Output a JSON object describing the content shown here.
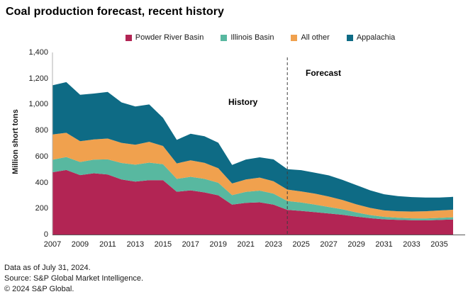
{
  "title": "Coal production forecast, recent history",
  "legend": [
    {
      "label": "Powder River Basin",
      "color": "#b22554"
    },
    {
      "label": "Illinois Basin",
      "color": "#58b8a0"
    },
    {
      "label": "All other",
      "color": "#f0a14e"
    },
    {
      "label": "Appalachia",
      "color": "#0e6b85"
    }
  ],
  "chart_data": {
    "type": "area",
    "stacked": true,
    "title": "Coal production forecast, recent history",
    "ylabel": "Million short tons",
    "xlabel": "",
    "ylim": [
      0,
      1400
    ],
    "grid": false,
    "legend_position": "top",
    "x": [
      2007,
      2008,
      2009,
      2010,
      2011,
      2012,
      2013,
      2014,
      2015,
      2016,
      2017,
      2018,
      2019,
      2020,
      2021,
      2022,
      2023,
      2024,
      2025,
      2026,
      2027,
      2028,
      2029,
      2030,
      2031,
      2032,
      2033,
      2034,
      2035,
      2036
    ],
    "series": [
      {
        "name": "Powder River Basin",
        "color": "#b22554",
        "values": [
          479,
          496,
          457,
          471,
          462,
          423,
          407,
          418,
          418,
          329,
          340,
          324,
          302,
          230,
          244,
          248,
          230,
          190,
          182,
          172,
          162,
          152,
          138,
          126,
          117,
          113,
          110,
          109,
          112,
          116
        ]
      },
      {
        "name": "Illinois Basin",
        "color": "#58b8a0",
        "values": [
          96,
          100,
          101,
          105,
          116,
          127,
          130,
          135,
          123,
          99,
          104,
          104,
          96,
          73,
          84,
          90,
          85,
          68,
          65,
          58,
          50,
          42,
          32,
          24,
          19,
          16,
          15,
          15,
          16,
          17
        ]
      },
      {
        "name": "All other",
        "color": "#f0a14e",
        "values": [
          195,
          186,
          160,
          155,
          160,
          155,
          153,
          160,
          140,
          119,
          127,
          124,
          112,
          90,
          95,
          100,
          95,
          88,
          85,
          85,
          80,
          72,
          62,
          55,
          50,
          50,
          52,
          55,
          57,
          58
        ]
      },
      {
        "name": "Appalachia",
        "color": "#0e6b85",
        "values": [
          377,
          390,
          357,
          353,
          358,
          311,
          295,
          287,
          216,
          181,
          204,
          204,
          196,
          142,
          154,
          156,
          168,
          156,
          163,
          160,
          163,
          154,
          148,
          135,
          124,
          116,
          111,
          106,
          100,
          99
        ]
      }
    ],
    "y_ticks": [
      "0",
      "200",
      "400",
      "600",
      "800",
      "1,000",
      "1,200",
      "1,400"
    ],
    "y_tick_values": [
      0,
      200,
      400,
      600,
      800,
      1000,
      1200,
      1400
    ],
    "x_ticks": [
      "2007",
      "2009",
      "2011",
      "2013",
      "2015",
      "2017",
      "2019",
      "2021",
      "2023",
      "2025",
      "2027",
      "2029",
      "2031",
      "2033",
      "2035"
    ],
    "x_tick_values": [
      2007,
      2009,
      2011,
      2013,
      2015,
      2017,
      2019,
      2021,
      2023,
      2025,
      2027,
      2029,
      2031,
      2033,
      2035
    ],
    "annotations": {
      "history_label": "History",
      "forecast_label": "Forecast",
      "divider_x": 2024
    }
  },
  "footer": {
    "line1": "Data as of July 31, 2024.",
    "line2": "Source: S&P Global Market Intelligence.",
    "line3": "© 2024 S&P Global."
  }
}
